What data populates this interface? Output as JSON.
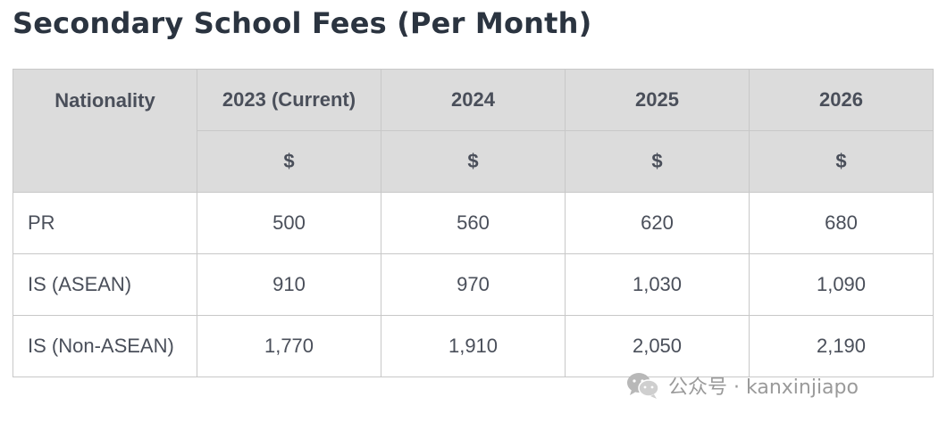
{
  "title": "Secondary School Fees (Per Month)",
  "table": {
    "header": {
      "first": "Nationality",
      "years": [
        "2023 (Current)",
        "2024",
        "2025",
        "2026"
      ],
      "units": [
        "$",
        "$",
        "$",
        "$"
      ]
    },
    "rows": [
      {
        "label": "PR",
        "values": [
          "500",
          "560",
          "620",
          "680"
        ]
      },
      {
        "label": "IS (ASEAN)",
        "values": [
          "910",
          "970",
          "1,030",
          "1,090"
        ]
      },
      {
        "label": "IS (Non-ASEAN)",
        "values": [
          "1,770",
          "1,910",
          "2,050",
          "2,190"
        ]
      }
    ]
  },
  "watermark": {
    "icon": "wechat-icon",
    "text": "公众号 · kanxinjiapo"
  }
}
